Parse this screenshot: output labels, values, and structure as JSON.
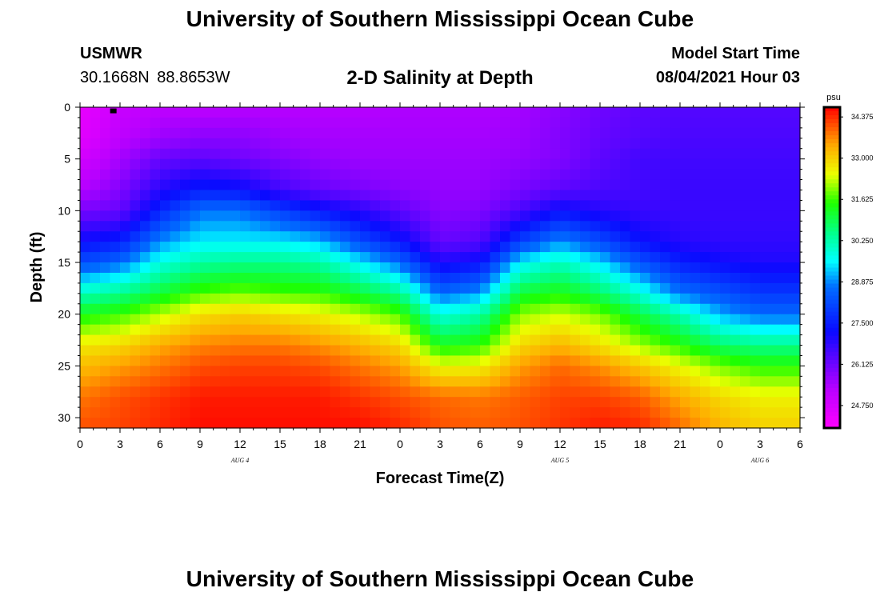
{
  "header": {
    "title": "University of Southern Mississippi Ocean Cube",
    "station": "USMWR",
    "coordinates": "30.1668N  88.8653W",
    "chart_title": "2-D Salinity at Depth",
    "model_start_label": "Model Start Time",
    "model_start_value": "08/04/2021 Hour 03"
  },
  "footer": {
    "title": "University of Southern Mississippi Ocean Cube"
  },
  "chart_data": {
    "type": "heatmap",
    "title": "2-D Salinity at Depth",
    "xlabel": "Forecast Time(Z)",
    "ylabel": "Depth (ft)",
    "units": "psu",
    "x_range_hours": [
      0,
      54
    ],
    "y_range_ft": [
      0,
      31
    ],
    "y_inverted": true,
    "x_ticks": [
      {
        "hour": 0,
        "label": "0"
      },
      {
        "hour": 3,
        "label": "3"
      },
      {
        "hour": 6,
        "label": "6"
      },
      {
        "hour": 9,
        "label": "9"
      },
      {
        "hour": 12,
        "label": "12"
      },
      {
        "hour": 15,
        "label": "15"
      },
      {
        "hour": 18,
        "label": "18"
      },
      {
        "hour": 21,
        "label": "21"
      },
      {
        "hour": 24,
        "label": "0"
      },
      {
        "hour": 27,
        "label": "3"
      },
      {
        "hour": 30,
        "label": "6"
      },
      {
        "hour": 33,
        "label": "9"
      },
      {
        "hour": 36,
        "label": "12"
      },
      {
        "hour": 39,
        "label": "15"
      },
      {
        "hour": 42,
        "label": "18"
      },
      {
        "hour": 45,
        "label": "21"
      },
      {
        "hour": 48,
        "label": "0"
      },
      {
        "hour": 51,
        "label": "3"
      },
      {
        "hour": 54,
        "label": "6"
      }
    ],
    "y_ticks": [
      {
        "depth": 0,
        "label": "0"
      },
      {
        "depth": 5,
        "label": "5"
      },
      {
        "depth": 10,
        "label": "10"
      },
      {
        "depth": 15,
        "label": "15"
      },
      {
        "depth": 20,
        "label": "20"
      },
      {
        "depth": 25,
        "label": "25"
      },
      {
        "depth": 30,
        "label": "30"
      }
    ],
    "date_labels": [
      {
        "hour": 12,
        "label": "AUG 4"
      },
      {
        "hour": 36,
        "label": "AUG 5"
      },
      {
        "hour": 51,
        "label": "AUG 6"
      }
    ],
    "colorbar": {
      "min": 24.0,
      "max": 34.7,
      "ticks": [
        "34.375",
        "33.000",
        "31.625",
        "30.250",
        "28.875",
        "27.500",
        "26.125",
        "24.750"
      ]
    },
    "time_hours": [
      0,
      3,
      6,
      9,
      12,
      15,
      18,
      21,
      24,
      27,
      30,
      33,
      36,
      39,
      42,
      45,
      48,
      51,
      54
    ],
    "depth_ft": [
      0,
      3,
      5,
      8,
      10,
      13,
      15,
      18,
      20,
      23,
      25,
      28,
      31
    ],
    "salinity_psu": [
      [
        24.4,
        25.0,
        25.2,
        25.2,
        25.3,
        25.3,
        25.3,
        25.3,
        25.4,
        25.4,
        25.4,
        25.5,
        25.8,
        26.1,
        26.3,
        26.4,
        26.4,
        26.4,
        26.4
      ],
      [
        24.5,
        25.2,
        25.6,
        25.8,
        25.8,
        25.6,
        25.5,
        25.5,
        25.5,
        25.5,
        25.5,
        25.6,
        25.9,
        26.2,
        26.4,
        26.5,
        26.5,
        26.5,
        26.5
      ],
      [
        24.8,
        25.5,
        26.2,
        26.3,
        26.1,
        25.9,
        25.7,
        25.6,
        25.6,
        25.6,
        25.6,
        25.7,
        25.9,
        26.3,
        26.6,
        26.6,
        26.6,
        26.6,
        26.6
      ],
      [
        25.3,
        25.9,
        26.9,
        27.5,
        27.3,
        26.6,
        26.2,
        26.0,
        25.8,
        25.7,
        25.7,
        26.0,
        26.3,
        26.5,
        26.6,
        26.7,
        26.7,
        26.7,
        26.7
      ],
      [
        26.0,
        26.2,
        27.6,
        28.7,
        28.7,
        28.0,
        27.4,
        26.9,
        26.3,
        25.8,
        25.9,
        26.5,
        27.3,
        26.9,
        26.7,
        26.7,
        26.7,
        26.7,
        26.7
      ],
      [
        27.2,
        27.5,
        28.9,
        29.5,
        29.5,
        29.5,
        29.2,
        28.2,
        27.4,
        26.2,
        26.4,
        28.0,
        28.9,
        28.2,
        27.3,
        26.9,
        26.8,
        26.8,
        26.8
      ],
      [
        28.2,
        28.6,
        29.8,
        30.3,
        30.5,
        30.5,
        30.3,
        29.5,
        28.6,
        27.0,
        27.3,
        29.5,
        30.1,
        29.4,
        28.3,
        27.5,
        27.2,
        27.0,
        27.0
      ],
      [
        30.1,
        30.5,
        31.1,
        31.7,
        31.9,
        31.7,
        31.6,
        31.1,
        30.5,
        28.6,
        29.0,
        31.1,
        31.4,
        30.8,
        29.9,
        28.7,
        28.3,
        27.9,
        27.9
      ],
      [
        31.3,
        31.6,
        32.2,
        32.8,
        33.0,
        32.8,
        32.6,
        32.2,
        31.7,
        29.8,
        30.3,
        32.0,
        32.3,
        31.9,
        31.0,
        30.2,
        29.1,
        28.6,
        28.6
      ],
      [
        32.7,
        32.9,
        33.4,
        33.7,
        33.8,
        33.8,
        33.6,
        33.3,
        32.9,
        31.3,
        31.5,
        32.9,
        33.3,
        32.8,
        32.1,
        31.5,
        30.8,
        30.5,
        30.5
      ],
      [
        33.2,
        33.5,
        33.8,
        34.1,
        34.2,
        34.2,
        34.1,
        33.8,
        33.5,
        32.5,
        32.6,
        33.5,
        33.9,
        33.6,
        33.1,
        32.5,
        31.9,
        31.5,
        31.5
      ],
      [
        33.8,
        34.1,
        34.3,
        34.5,
        34.5,
        34.5,
        34.5,
        34.3,
        34.1,
        33.9,
        33.8,
        34.0,
        34.2,
        34.2,
        34.0,
        33.4,
        32.9,
        32.6,
        32.6
      ],
      [
        34.1,
        34.2,
        34.4,
        34.6,
        34.6,
        34.6,
        34.6,
        34.6,
        34.4,
        34.1,
        34.0,
        34.1,
        34.3,
        34.5,
        34.4,
        33.9,
        33.3,
        33.0,
        33.0
      ]
    ],
    "station_marker": {
      "hour": 2.5,
      "depth": 0.2
    }
  }
}
